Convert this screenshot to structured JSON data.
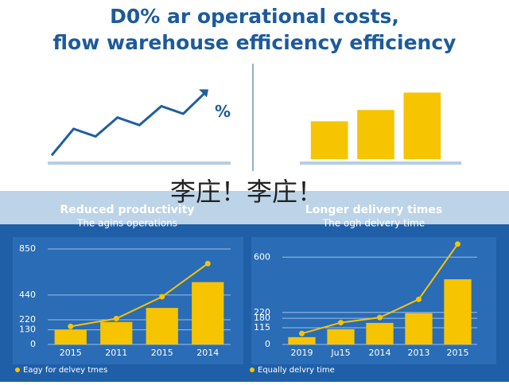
{
  "title": [
    "D0% ar operational costs,",
    "flow warehouse efficiency efficiency"
  ],
  "watermark": "李庄！李庄！",
  "chart_data": [
    {
      "type": "line",
      "annotation": "%",
      "color": "#1f5f9e",
      "values": [
        5,
        40,
        30,
        55,
        45,
        70,
        60,
        88
      ],
      "ylim": [
        0,
        100
      ]
    },
    {
      "type": "bar",
      "color": "#f6c400",
      "values": [
        50,
        65,
        88
      ],
      "ylim": [
        0,
        100
      ]
    },
    {
      "type": "bar_line",
      "title": "Reduced productivity",
      "subtitle": "The agins operations",
      "categories": [
        "2015",
        "2011",
        "2015",
        "2014"
      ],
      "values": [
        130,
        200,
        325,
        555
      ],
      "color": "#f6c400",
      "series": [
        {
          "name": "Eagy for delvey tmes",
          "color": "#f6c400",
          "values": [
            160,
            230,
            425,
            720
          ]
        }
      ],
      "ylim": [
        0,
        850
      ],
      "yticks": [
        0,
        130,
        220,
        440,
        850
      ],
      "grid": true
    },
    {
      "type": "bar_line",
      "title": "Longer delivery times",
      "subtitle": "The ogh delvery time",
      "categories": [
        "2019",
        "Ju15",
        "2014",
        "2013",
        "2015"
      ],
      "values": [
        50,
        105,
        148,
        215,
        448
      ],
      "color": "#f6c400",
      "series": [
        {
          "name": "Equally delvry time",
          "color": "#f6c400",
          "values": [
            75,
            150,
            185,
            310,
            690
          ]
        }
      ],
      "ylim": [
        0,
        700
      ],
      "yticks": [
        0,
        115,
        180,
        220,
        600
      ],
      "grid": true
    }
  ]
}
